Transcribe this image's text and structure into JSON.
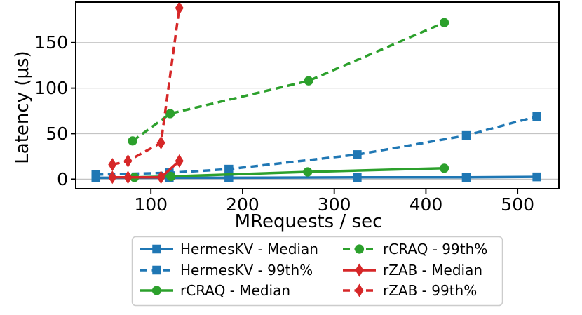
{
  "figure": {
    "background": "#ffffff"
  },
  "chart_data": {
    "type": "line",
    "title": "",
    "xlabel": "MRequests / sec",
    "ylabel": "Latency (μs)",
    "xlim": [
      18,
      545
    ],
    "ylim": [
      -10.5,
      194.5
    ],
    "xticks": [
      100,
      200,
      300,
      400,
      500
    ],
    "yticks": [
      0,
      50,
      100,
      150
    ],
    "grid": "horizontal-only",
    "grid_color": "#c4c4c4",
    "axis_color": "#000000",
    "legend": {
      "position": "below-center",
      "columns": 2,
      "border_color": "#cccccc"
    },
    "series": [
      {
        "name": "HermesKV - Median",
        "color": "#1f77b4",
        "line_style": "solid",
        "marker": "square",
        "x": [
          40,
          120,
          185,
          325,
          444,
          521
        ],
        "y": [
          1.5,
          1.5,
          1.5,
          2,
          2,
          2.5
        ]
      },
      {
        "name": "HermesKV - 99th%",
        "color": "#1f77b4",
        "line_style": "dashed",
        "marker": "square",
        "x": [
          40,
          120,
          185,
          325,
          444,
          521
        ],
        "y": [
          5,
          7,
          11,
          27,
          48,
          69
        ]
      },
      {
        "name": "rCRAQ - Median",
        "color": "#2ca02c",
        "line_style": "solid",
        "marker": "circle",
        "x": [
          82,
          122,
          271,
          420
        ],
        "y": [
          2,
          3,
          8,
          12
        ]
      },
      {
        "name": "rCRAQ - 99th%",
        "color": "#2ca02c",
        "line_style": "dashed",
        "marker": "circle",
        "x": [
          80,
          121,
          272,
          420
        ],
        "y": [
          42,
          72,
          108,
          172
        ]
      },
      {
        "name": "rZAB - Median",
        "color": "#d62728",
        "line_style": "solid",
        "marker": "diamond",
        "x": [
          58,
          75,
          111,
          131
        ],
        "y": [
          2,
          2,
          2,
          20
        ]
      },
      {
        "name": "rZAB - 99th%",
        "color": "#d62728",
        "line_style": "dashed",
        "marker": "diamond",
        "x": [
          58,
          75,
          111,
          131
        ],
        "y": [
          16,
          20,
          40,
          188
        ]
      }
    ]
  }
}
